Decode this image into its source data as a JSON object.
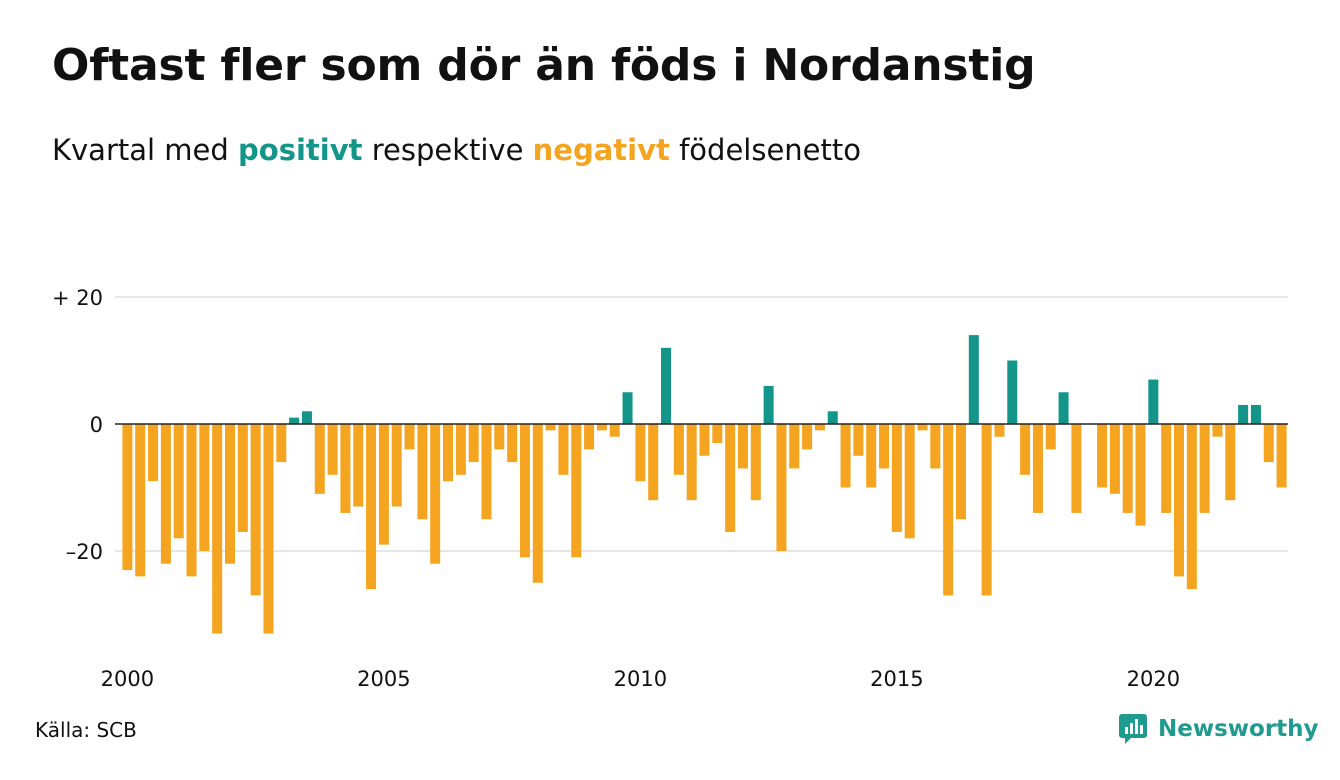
{
  "title": "Oftast fler som dör än föds i Nordanstig",
  "subtitle": {
    "part1": "Kvartal med ",
    "positive": "positivt",
    "part2": " respektive ",
    "negative": "negativt",
    "part3": " födelsenetto"
  },
  "source": "Källa: SCB",
  "brand": "Newsworthy",
  "colors": {
    "positive": "#13958a",
    "negative": "#f5a41f",
    "grid": "#e6e6e6",
    "zero_line": "#222222",
    "brand": "#1f9a8f"
  },
  "chart_data": {
    "type": "bar",
    "x_start": "2000 Q1",
    "x_label_interval": "quarterly",
    "x_ticks": [
      2000,
      2005,
      2010,
      2015,
      2020
    ],
    "y_ticks": [
      {
        "value": 20,
        "label": "+ 20"
      },
      {
        "value": 0,
        "label": "0"
      },
      {
        "value": -20,
        "label": "–20"
      }
    ],
    "ylim": [
      -35,
      22
    ],
    "grid": true,
    "values": [
      -23,
      -24,
      -9,
      -22,
      -18,
      -24,
      -20,
      -33,
      -22,
      -17,
      -27,
      -33,
      -6,
      1,
      2,
      -11,
      -8,
      -14,
      -13,
      -26,
      -19,
      -13,
      -4,
      -15,
      -22,
      -9,
      -8,
      -6,
      -15,
      -4,
      -6,
      -21,
      -25,
      -1,
      -8,
      -21,
      -4,
      -1,
      -2,
      5,
      -9,
      -12,
      12,
      -8,
      -12,
      -5,
      -3,
      -17,
      -7,
      -12,
      6,
      -20,
      -7,
      -4,
      -1,
      2,
      -10,
      -5,
      -10,
      -7,
      -17,
      -18,
      -1,
      -7,
      -27,
      -15,
      14,
      -27,
      -2,
      10,
      -8,
      -14,
      -4,
      5,
      -14,
      0,
      -10,
      -11,
      -14,
      -16,
      7,
      -14,
      -24,
      -26,
      -14,
      -2,
      -12,
      3,
      3,
      -6,
      -10
    ]
  }
}
